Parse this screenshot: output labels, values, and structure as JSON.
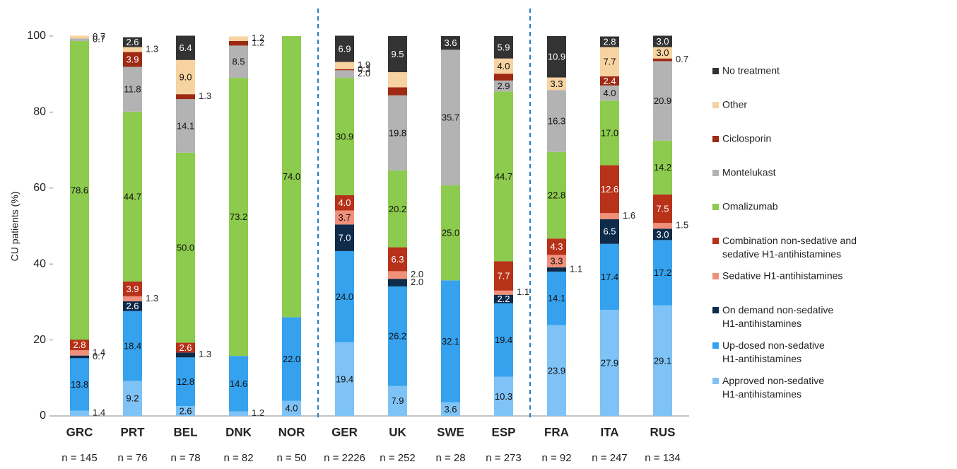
{
  "chart_data": {
    "type": "stacked_bar",
    "y_label": "CU patients (%)",
    "categories": [
      "GRC",
      "PRT",
      "BEL",
      "DNK",
      "NOR",
      "GER",
      "UK",
      "SWE",
      "ESP",
      "FRA",
      "ITA",
      "RUS"
    ],
    "sample_sizes": [
      "n = 145",
      "n = 76",
      "n = 78",
      "n = 82",
      "n = 50",
      "n = 2226",
      "n = 252",
      "n = 28",
      "n = 273",
      "n = 92",
      "n = 247",
      "n = 134"
    ],
    "ylim": [
      0,
      100
    ],
    "yticks": [
      0,
      20,
      40,
      60,
      80,
      100
    ],
    "series": [
      {
        "name": "Approved non-sedative H1-antihistamines",
        "color": "#7fc3f6",
        "values": [
          1.4,
          9.2,
          2.6,
          1.2,
          4.0,
          19.4,
          7.9,
          3.6,
          10.3,
          23.9,
          27.9,
          29.1
        ],
        "value_labels": [
          "1.4",
          "9.2",
          "2.6",
          "1.2",
          "4.0",
          "19.4",
          "7.9",
          "3.6",
          "10.3",
          "23.9",
          "27.9",
          "29.1"
        ]
      },
      {
        "name": "Up-dosed non-sedative H1-antihistamines",
        "color": "#36a2ee",
        "values": [
          13.8,
          18.4,
          12.8,
          14.6,
          22.0,
          24.0,
          26.2,
          32.1,
          19.4,
          14.1,
          17.4,
          17.2
        ],
        "value_labels": [
          "13.8",
          "18.4",
          "12.8",
          "14.6",
          "22.0",
          "24.0",
          "26.2",
          "32.1",
          "19.4",
          "14.1",
          "17.4",
          "17.2"
        ]
      },
      {
        "name": "On demand non-sedative H1-antihistamines",
        "color": "#0e2b4a",
        "values": [
          0.7,
          2.6,
          1.3,
          null,
          null,
          7.0,
          2.0,
          null,
          2.2,
          1.1,
          6.5,
          3.0
        ],
        "value_labels": [
          "0.7",
          "2.6",
          "1.3",
          null,
          null,
          "7.0",
          "2.0",
          null,
          "2.2",
          "1.1",
          "6.5",
          "3.0"
        ]
      },
      {
        "name": "Sedative  H1-antihistamines",
        "color": "#f0907a",
        "values": [
          1.4,
          1.3,
          null,
          null,
          null,
          3.7,
          2.0,
          null,
          1.1,
          3.3,
          1.6,
          1.5
        ],
        "value_labels": [
          "1.4",
          "1.3",
          null,
          null,
          null,
          "3.7",
          "2.0",
          null,
          "1.1",
          "3.3",
          "1.6",
          "1.5"
        ]
      },
      {
        "name": "Combination non-sedative and sedative H1-antihistamines",
        "color": "#b8321a",
        "values": [
          2.8,
          3.9,
          2.6,
          null,
          null,
          4.0,
          6.3,
          null,
          7.7,
          4.3,
          12.6,
          7.5
        ],
        "value_labels": [
          "2.8",
          "3.9",
          "2.6",
          null,
          null,
          "4.0",
          "6.3",
          null,
          "7.7",
          "4.3",
          "12.6",
          "7.5"
        ]
      },
      {
        "name": "Omalizumab",
        "color": "#8dcb4e",
        "values": [
          78.6,
          44.7,
          50.0,
          73.2,
          74.0,
          30.9,
          20.2,
          25.0,
          44.7,
          22.8,
          17.0,
          14.2
        ],
        "value_labels": [
          "78.6",
          "44.7",
          "50.0",
          "73.2",
          "74.0",
          "30.9",
          "20.2",
          "25.0",
          "44.7",
          "22.8",
          "17.0",
          "14.2"
        ]
      },
      {
        "name": "Montelukast",
        "color": "#b3b3b3",
        "values": [
          0.7,
          11.8,
          14.1,
          8.5,
          null,
          2.0,
          19.8,
          35.7,
          2.9,
          16.3,
          4.0,
          20.9
        ],
        "value_labels": [
          "0.7",
          "11.8",
          "14.1",
          "8.5",
          null,
          "2.0",
          "19.8",
          "35.7",
          "2.9",
          "16.3",
          "4.0",
          "20.9"
        ]
      },
      {
        "name": "Ciclosporin",
        "color": "#9e2a14",
        "values": [
          null,
          3.9,
          1.3,
          1.2,
          null,
          0.3,
          2.1,
          null,
          1.8,
          null,
          2.4,
          0.7
        ],
        "value_labels": [
          null,
          "3.9",
          "1.3",
          "1.2",
          null,
          "0.3",
          null,
          null,
          null,
          null,
          "2.4",
          "0.7"
        ]
      },
      {
        "name": "Other",
        "color": "#f6d3a0",
        "values": [
          0.7,
          1.3,
          9.0,
          1.2,
          null,
          1.9,
          4.0,
          null,
          4.0,
          3.3,
          7.7,
          3.0
        ],
        "value_labels": [
          "0.7",
          "1.3",
          "9.0",
          "1.2",
          null,
          "1.9",
          null,
          null,
          "4.0",
          "3.3",
          "7.7",
          "3.0"
        ]
      },
      {
        "name": "No treatment",
        "color": "#333333",
        "values": [
          null,
          2.6,
          6.4,
          null,
          null,
          6.9,
          9.5,
          3.6,
          5.9,
          10.9,
          2.8,
          3.0
        ],
        "value_labels": [
          null,
          "2.6",
          "6.4",
          null,
          null,
          "6.9",
          "9.5",
          "3.6",
          "5.9",
          "10.9",
          "2.8",
          "3.0"
        ]
      }
    ]
  }
}
